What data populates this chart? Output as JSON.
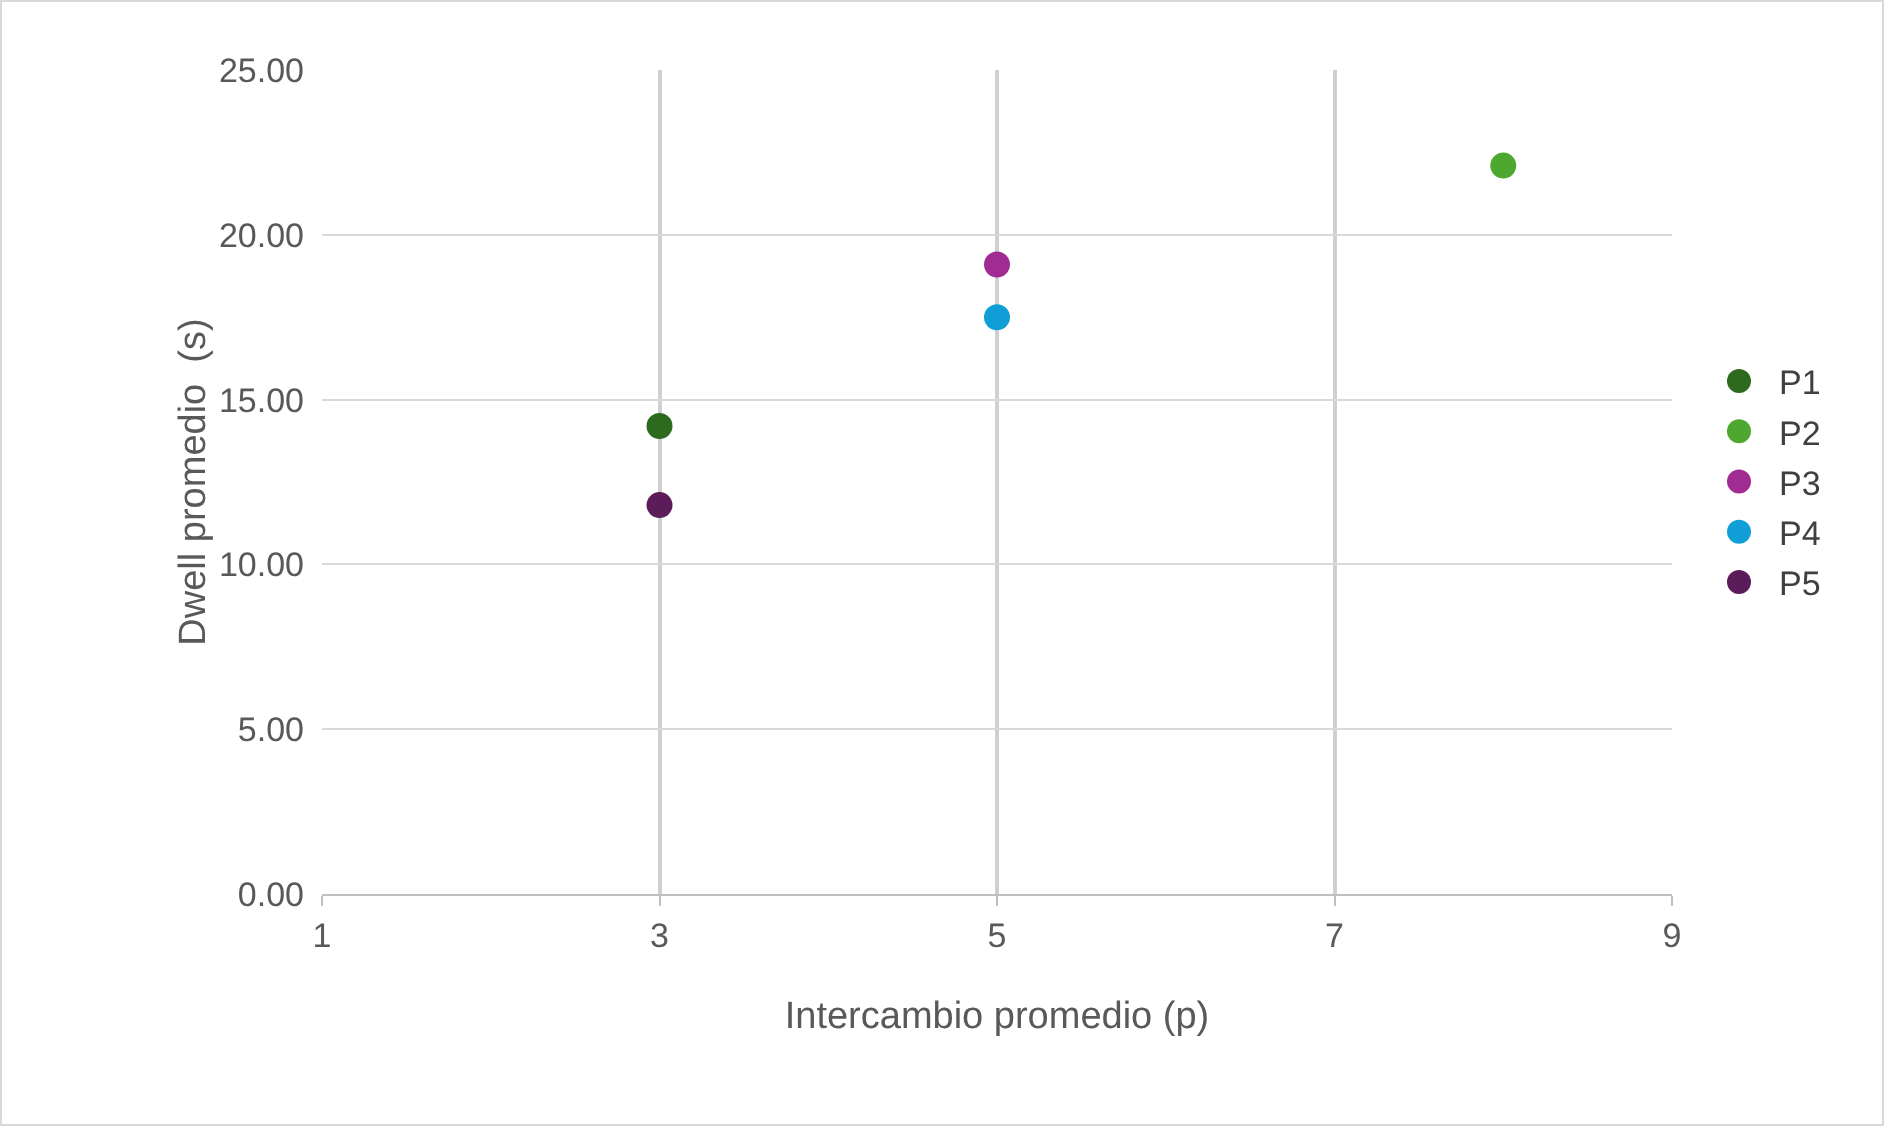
{
  "chart_data": {
    "type": "scatter",
    "xlabel": "Intercambio promedio (p)",
    "ylabel": "Dwell promedio  (s)",
    "xlim": [
      1,
      9
    ],
    "xticks": [
      1,
      3,
      5,
      7,
      9
    ],
    "ylim": [
      0,
      25
    ],
    "yticks": [
      {
        "value": 0,
        "label": "0.00"
      },
      {
        "value": 5,
        "label": "5.00"
      },
      {
        "value": 10,
        "label": "10.00"
      },
      {
        "value": 15,
        "label": "15.00"
      },
      {
        "value": 20,
        "label": "20.00"
      },
      {
        "value": 25,
        "label": "25.00"
      }
    ],
    "grid": true,
    "legend": "right",
    "marker": "circle",
    "series": [
      {
        "name": "P1",
        "color": "#2d6a1e",
        "x": [
          3
        ],
        "values": [
          14.2
        ]
      },
      {
        "name": "P2",
        "color": "#4ea72e",
        "x": [
          8
        ],
        "values": [
          22.1
        ]
      },
      {
        "name": "P3",
        "color": "#a02b93",
        "x": [
          5
        ],
        "values": [
          19.1
        ]
      },
      {
        "name": "P4",
        "color": "#0f9ed5",
        "x": [
          5
        ],
        "values": [
          17.5
        ]
      },
      {
        "name": "P5",
        "color": "#5c1c5a",
        "x": [
          3
        ],
        "values": [
          11.8
        ]
      }
    ]
  }
}
